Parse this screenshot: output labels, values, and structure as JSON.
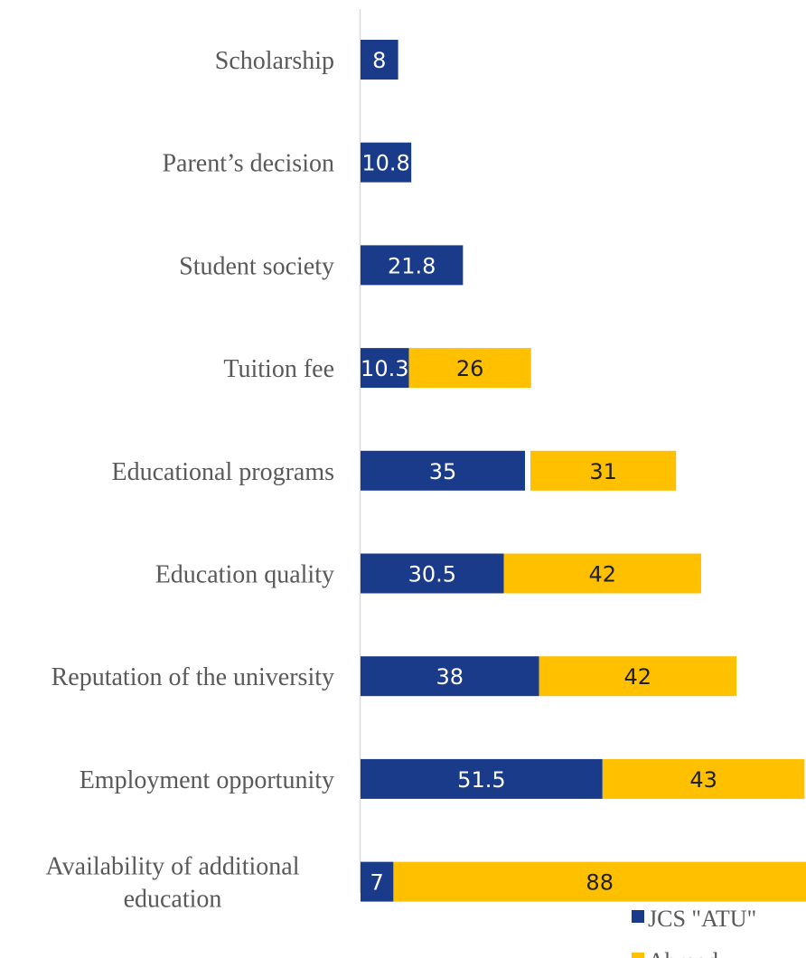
{
  "chart_data": {
    "type": "bar",
    "orientation": "horizontal",
    "stacked": true,
    "title": "",
    "xlabel": "",
    "ylabel": "",
    "categories": [
      [
        "Scholarship"
      ],
      [
        "Parent’s decision"
      ],
      [
        "Student society"
      ],
      [
        "Tuition fee"
      ],
      [
        "Educational programs"
      ],
      [
        "Education quality"
      ],
      [
        "Reputation of the university"
      ],
      [
        "Employment opportunity"
      ],
      [
        "Availability of additional",
        "education"
      ]
    ],
    "series": [
      {
        "name": "JCS \"ATU\"",
        "color": "#1a3a8a",
        "values": [
          8,
          10.8,
          21.8,
          10.3,
          35,
          30.5,
          38,
          51.5,
          7
        ]
      },
      {
        "name": "Abroad",
        "color": "#ffc000",
        "values": [
          null,
          null,
          null,
          26,
          31,
          42,
          42,
          43,
          88
        ]
      }
    ],
    "legend_position": "bottom-right",
    "grid": false,
    "axis_labels_visible": false
  }
}
